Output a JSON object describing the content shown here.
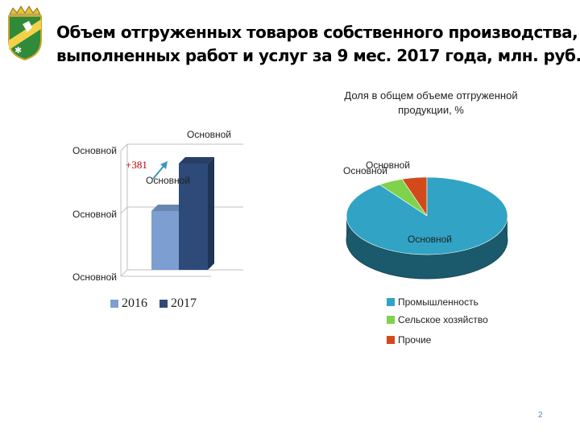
{
  "slide": {
    "title_line1": "Объем отгруженных товаров собственного производства,",
    "title_line2": "выполненных работ и услуг за 9 мес. 2017 года, млн. руб.",
    "page_number": "2"
  },
  "chart_data": [
    {
      "type": "bar",
      "categories": [
        ""
      ],
      "series": [
        {
          "name": "2016",
          "values": [
            null
          ],
          "color": "#7c9ed0"
        },
        {
          "name": "2017",
          "values": [
            null
          ],
          "color": "#2e4a78"
        }
      ],
      "axis_tick_labels": [
        "Основной",
        "Основной",
        "Основной"
      ],
      "top_label": "Основной",
      "data_label": "Основной",
      "annotation": "+381",
      "legend_position": "bottom",
      "grid": true
    },
    {
      "type": "pie",
      "title": "Доля в общем объеме отгруженной продукции, %",
      "slices": [
        {
          "name": "Промышленность",
          "value": 90,
          "color": "#31a3c5",
          "label": "Основной"
        },
        {
          "name": "Сельское хозяйство",
          "value": 5,
          "color": "#7fd24c",
          "label": "Основной"
        },
        {
          "name": "Прочие",
          "value": 5,
          "color": "#d24a1c",
          "label": "Основной"
        }
      ],
      "legend_position": "bottom"
    }
  ]
}
